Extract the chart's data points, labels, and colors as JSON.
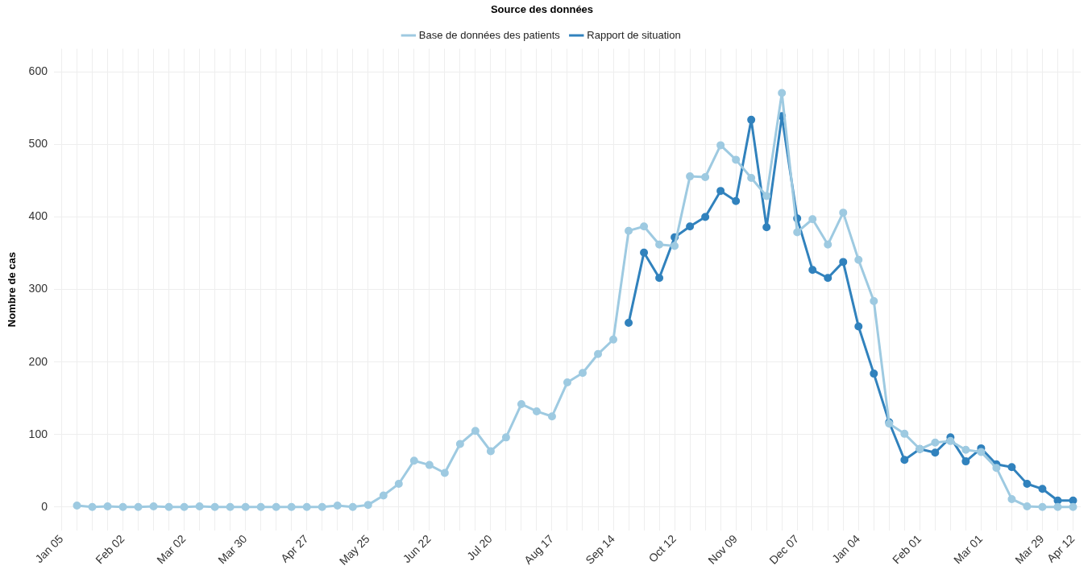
{
  "chart_data": {
    "type": "line",
    "ylabel": "Nombre de cas",
    "legend_title": "Source des données",
    "legend": "top",
    "grid": true,
    "marker": "circle",
    "line_style": "solid",
    "categories": [
      "Jan 05",
      null,
      null,
      null,
      "Feb 02",
      null,
      null,
      null,
      "Mar 02",
      null,
      null,
      null,
      "Mar 30",
      null,
      null,
      null,
      "Apr 27",
      null,
      null,
      null,
      "May 25",
      null,
      null,
      null,
      "Jun 22",
      null,
      null,
      null,
      "Jul 20",
      null,
      null,
      null,
      "Aug 17",
      null,
      null,
      null,
      "Sep 14",
      null,
      null,
      null,
      "Oct 12",
      null,
      null,
      null,
      "Nov 09",
      null,
      null,
      null,
      "Dec 07",
      null,
      null,
      null,
      "Jan 04",
      null,
      null,
      null,
      "Feb 01",
      null,
      null,
      null,
      "Mar 01",
      null,
      null,
      null,
      "Mar 29",
      null,
      "Apr 12"
    ],
    "series": [
      {
        "name": "Base de données des patients",
        "color": "#9ecae1",
        "values": [
          null,
          2,
          0,
          1,
          0,
          0,
          1,
          0,
          0,
          1,
          0,
          0,
          0,
          0,
          0,
          0,
          0,
          0,
          2,
          0,
          3,
          16,
          32,
          64,
          58,
          47,
          87,
          105,
          77,
          96,
          142,
          132,
          125,
          172,
          185,
          211,
          231,
          381,
          387,
          362,
          360,
          456,
          455,
          499,
          479,
          454,
          429,
          571,
          379,
          397,
          362,
          406,
          341,
          284,
          115,
          101,
          80,
          89,
          91,
          79,
          76,
          54,
          11,
          1,
          0,
          0,
          0
        ]
      },
      {
        "name": "Rapport de situation",
        "color": "#3182bd",
        "values": [
          null,
          null,
          null,
          null,
          null,
          null,
          null,
          null,
          null,
          null,
          null,
          null,
          null,
          null,
          null,
          null,
          null,
          null,
          null,
          null,
          null,
          null,
          null,
          null,
          null,
          null,
          null,
          null,
          null,
          null,
          null,
          null,
          null,
          null,
          null,
          null,
          null,
          254,
          351,
          316,
          372,
          387,
          400,
          436,
          422,
          534,
          386,
          539,
          398,
          327,
          316,
          338,
          249,
          184,
          117,
          65,
          80,
          75,
          96,
          63,
          81,
          59,
          55,
          32,
          25,
          9,
          9
        ]
      }
    ],
    "ylim": [
      -32,
      632
    ],
    "yticks": [
      0,
      100,
      200,
      300,
      400,
      500,
      600
    ]
  }
}
